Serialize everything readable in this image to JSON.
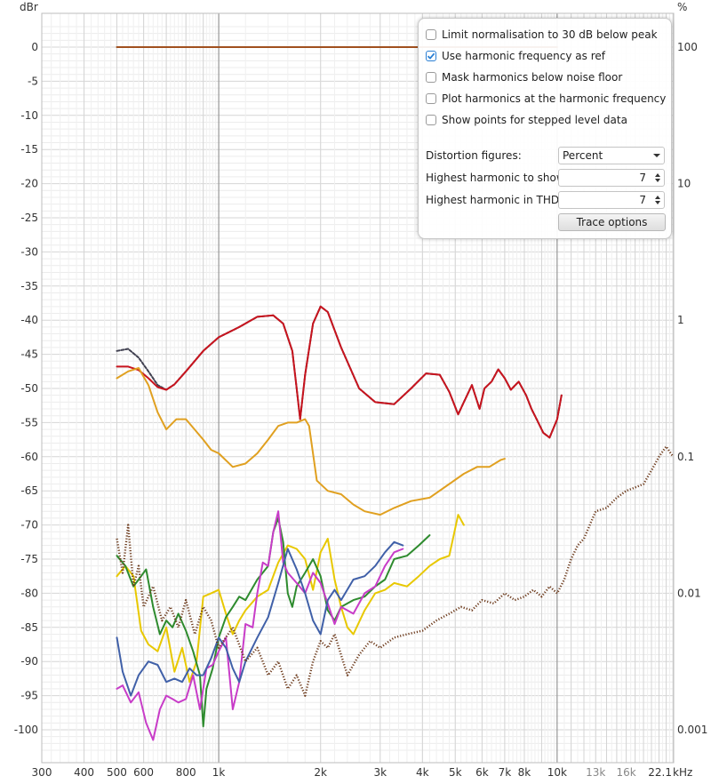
{
  "axes": {
    "left_unit": "dBr",
    "right_unit": "%",
    "x_unit": "kHz",
    "left_ticks": [
      "0",
      "-5",
      "-10",
      "-15",
      "-20",
      "-25",
      "-30",
      "-35",
      "-40",
      "-45",
      "-50",
      "-55",
      "-60",
      "-65",
      "-70",
      "-75",
      "-80",
      "-85",
      "-90",
      "-95",
      "-100"
    ],
    "right_ticks": [
      "100",
      "10",
      "1",
      "0.1",
      "0.01",
      "0.001"
    ],
    "x_ticks": [
      "300",
      "400",
      "500",
      "600",
      "800",
      "1k",
      "2k",
      "3k",
      "4k",
      "5k",
      "6k",
      "7k",
      "8k",
      "10k",
      "13k",
      "16k",
      "22.1"
    ]
  },
  "options_panel": {
    "checkboxes": [
      {
        "label": "Limit normalisation to 30 dB below peak",
        "checked": false
      },
      {
        "label": "Use harmonic frequency as ref",
        "checked": true
      },
      {
        "label": "Mask harmonics below noise floor",
        "checked": false
      },
      {
        "label": "Plot harmonics at the harmonic frequency",
        "checked": false
      },
      {
        "label": "Show points for stepped level data",
        "checked": false
      }
    ],
    "distortion_label": "Distortion figures:",
    "distortion_value": "Percent",
    "highest_show_label": "Highest harmonic to show:",
    "highest_show_value": "7",
    "highest_thd_label": "Highest harmonic in THD:",
    "highest_thd_value": "7",
    "trace_options_label": "Trace options"
  },
  "chart_data": {
    "type": "line",
    "x_scale": "log",
    "xlim": [
      300,
      22100
    ],
    "ylim": [
      -103,
      5
    ],
    "ylabel": "dBr",
    "y2label": "%",
    "xlabel": "kHz",
    "grid": true,
    "series": [
      {
        "color": "#a0501e",
        "style": "solid",
        "x": [
          500,
          10000
        ],
        "y": [
          0,
          0
        ]
      },
      {
        "color": "#404050",
        "style": "dashed",
        "x": [
          500,
          540,
          580,
          620,
          660,
          700,
          740,
          800,
          900,
          1000,
          1150,
          1300,
          1450,
          1550,
          1650,
          1700,
          1740,
          1800,
          1900,
          2000,
          2100,
          2300,
          2600,
          2900,
          3300,
          3700,
          4100,
          4500,
          4800,
          5100,
          5300,
          5600,
          5900,
          6100,
          6400,
          6700,
          7000,
          7300,
          7700,
          8100,
          8400,
          8700,
          9100,
          9500,
          10000,
          10300
        ],
        "y": [
          -44.5,
          -44.2,
          -45.5,
          -47.5,
          -49.5,
          -50.2,
          -49.4,
          -47.5,
          -44.5,
          -42.5,
          -41.0,
          -39.5,
          -39.3,
          -40.5,
          -44.5,
          -50,
          -54.5,
          -48,
          -40.5,
          -38.0,
          -38.8,
          -44.0,
          -50.0,
          -52.0,
          -52.3,
          -50.0,
          -47.8,
          -48.0,
          -50.5,
          -53.8,
          -52.0,
          -49.5,
          -53.0,
          -50.0,
          -49.0,
          -47.2,
          -48.5,
          -50.2,
          -49.0,
          -51.0,
          -53.0,
          -54.5,
          -56.5,
          -57.2,
          -54.5,
          -51.0
        ]
      },
      {
        "color": "#c8141e",
        "style": "solid",
        "x": [
          500,
          540,
          580,
          620,
          660,
          700,
          740,
          800,
          900,
          1000,
          1150,
          1300,
          1450,
          1550,
          1650,
          1700,
          1740,
          1800,
          1900,
          2000,
          2100,
          2300,
          2600,
          2900,
          3300,
          3700,
          4100,
          4500,
          4800,
          5100,
          5300,
          5600,
          5900,
          6100,
          6400,
          6700,
          7000,
          7300,
          7700,
          8100,
          8400,
          8700,
          9100,
          9500,
          10000,
          10300
        ],
        "y": [
          -46.8,
          -46.8,
          -47.3,
          -48.5,
          -49.8,
          -50.2,
          -49.4,
          -47.5,
          -44.5,
          -42.5,
          -41.0,
          -39.5,
          -39.3,
          -40.5,
          -44.5,
          -50,
          -54.5,
          -48,
          -40.5,
          -38.0,
          -38.8,
          -44.0,
          -50.0,
          -52.0,
          -52.3,
          -50.0,
          -47.8,
          -48.0,
          -50.5,
          -53.8,
          -52.0,
          -49.5,
          -53.0,
          -50.0,
          -49.0,
          -47.2,
          -48.5,
          -50.2,
          -49.0,
          -51.0,
          -53.0,
          -54.5,
          -56.5,
          -57.2,
          -54.5,
          -51.0
        ]
      },
      {
        "color": "#e0a020",
        "style": "solid",
        "x": [
          500,
          540,
          580,
          620,
          660,
          700,
          750,
          800,
          900,
          950,
          1000,
          1100,
          1200,
          1300,
          1400,
          1500,
          1600,
          1700,
          1800,
          1850,
          1950,
          2100,
          2300,
          2500,
          2700,
          3000,
          3300,
          3700,
          4200,
          4800,
          5300,
          5800,
          6300,
          6800,
          7000
        ],
        "y": [
          -48.5,
          -47.5,
          -47.0,
          -49.5,
          -53.5,
          -56.0,
          -54.5,
          -54.5,
          -57.5,
          -59.0,
          -59.5,
          -61.5,
          -61.0,
          -59.5,
          -57.5,
          -55.5,
          -55.0,
          -55.0,
          -54.5,
          -55.5,
          -63.5,
          -65.0,
          -65.5,
          -67.0,
          -68.0,
          -68.5,
          -67.5,
          -66.5,
          -66.0,
          -64.0,
          -62.5,
          -61.5,
          -61.5,
          -60.5,
          -60.3
        ]
      },
      {
        "color": "#e8c800",
        "style": "solid",
        "x": [
          500,
          530,
          560,
          590,
          620,
          660,
          700,
          740,
          780,
          820,
          860,
          900,
          950,
          1000,
          1050,
          1100,
          1150,
          1200,
          1300,
          1400,
          1500,
          1600,
          1700,
          1800,
          1900,
          2000,
          2100,
          2200,
          2300,
          2400,
          2500,
          2700,
          2900,
          3100,
          3300,
          3600,
          3900,
          4200,
          4500,
          4800,
          5100,
          5300
        ],
        "y": [
          -77.5,
          -76.0,
          -77.5,
          -85.5,
          -87.5,
          -88.5,
          -85.0,
          -91.5,
          -88.0,
          -93.0,
          -90.0,
          -80.5,
          -80.0,
          -79.5,
          -83.0,
          -86.0,
          -84.0,
          -82.5,
          -80.5,
          -79.5,
          -75.5,
          -73.0,
          -73.5,
          -75.0,
          -79.5,
          -74.0,
          -72.0,
          -78.0,
          -82.0,
          -85.0,
          -86.0,
          -82.5,
          -80.0,
          -79.5,
          -78.5,
          -79.0,
          -77.5,
          -76.0,
          -75.0,
          -74.5,
          -68.5,
          -70.0
        ]
      },
      {
        "color": "#2e8b2e",
        "style": "solid",
        "x": [
          500,
          530,
          560,
          590,
          610,
          640,
          670,
          700,
          730,
          760,
          800,
          840,
          880,
          900,
          920,
          960,
          1000,
          1050,
          1100,
          1150,
          1200,
          1300,
          1400,
          1450,
          1500,
          1550,
          1600,
          1650,
          1700,
          1800,
          1900,
          2000,
          2100,
          2200,
          2300,
          2500,
          2700,
          2900,
          3100,
          3300,
          3600,
          3900,
          4200
        ],
        "y": [
          -74.5,
          -76.0,
          -79.0,
          -77.5,
          -76.5,
          -82.0,
          -86.0,
          -84.0,
          -85.0,
          -83.0,
          -85.5,
          -88.5,
          -92.0,
          -99.5,
          -94.0,
          -91.0,
          -86.5,
          -83.5,
          -82.0,
          -80.5,
          -81.0,
          -78.0,
          -76.0,
          -71.0,
          -69.0,
          -72.5,
          -80.0,
          -82.0,
          -79.0,
          -77.0,
          -75.0,
          -77.5,
          -82.5,
          -84.0,
          -82.0,
          -81.0,
          -80.5,
          -79.0,
          -78.0,
          -75.0,
          -74.5,
          -73.0,
          -71.5
        ]
      },
      {
        "color": "#c83cc8",
        "style": "solid",
        "x": [
          500,
          520,
          550,
          580,
          610,
          640,
          670,
          700,
          730,
          760,
          800,
          840,
          880,
          920,
          960,
          1000,
          1050,
          1100,
          1150,
          1200,
          1260,
          1300,
          1350,
          1400,
          1450,
          1500,
          1550,
          1600,
          1700,
          1800,
          1900,
          2000,
          2100,
          2200,
          2300,
          2500,
          2700,
          2900,
          3100,
          3300,
          3500
        ],
        "y": [
          -94.0,
          -93.5,
          -96.0,
          -94.5,
          -99.0,
          -101.5,
          -97.0,
          -95.0,
          -95.5,
          -96.0,
          -95.5,
          -92.0,
          -97.0,
          -91.0,
          -90.5,
          -88.5,
          -86.5,
          -97.0,
          -93.0,
          -84.5,
          -85.0,
          -80.0,
          -75.5,
          -76.0,
          -71.0,
          -68.0,
          -75.5,
          -77.0,
          -78.5,
          -80.0,
          -77.0,
          -78.5,
          -81.5,
          -84.5,
          -82.0,
          -83.0,
          -80.0,
          -79.0,
          -76.0,
          -74.0,
          -73.5
        ]
      },
      {
        "color": "#4060a8",
        "style": "solid",
        "x": [
          500,
          520,
          550,
          580,
          620,
          660,
          700,
          740,
          780,
          820,
          860,
          900,
          950,
          1000,
          1050,
          1100,
          1150,
          1200,
          1300,
          1400,
          1500,
          1600,
          1700,
          1800,
          1900,
          2000,
          2100,
          2200,
          2300,
          2500,
          2700,
          2900,
          3100,
          3300,
          3500
        ],
        "y": [
          -86.5,
          -91.5,
          -95.0,
          -92.0,
          -90.0,
          -90.5,
          -93.0,
          -92.5,
          -93.0,
          -91.0,
          -92.0,
          -92.0,
          -89.5,
          -86.5,
          -88.0,
          -91.0,
          -93.0,
          -90.0,
          -86.5,
          -83.5,
          -78.5,
          -73.5,
          -76.5,
          -80.0,
          -84.0,
          -86.0,
          -81.0,
          -79.5,
          -81.0,
          -78.0,
          -77.5,
          -76.0,
          -74.0,
          -72.5,
          -73.0
        ]
      },
      {
        "color": "#6e3c1e",
        "style": "dotted",
        "x": [
          500,
          520,
          540,
          560,
          580,
          600,
          640,
          680,
          720,
          760,
          800,
          850,
          900,
          950,
          1000,
          1100,
          1200,
          1300,
          1400,
          1500,
          1600,
          1700,
          1800,
          1900,
          2000,
          2100,
          2200,
          2400,
          2600,
          2800,
          3000,
          3300,
          3600,
          4000,
          4400,
          4800,
          5200,
          5600,
          6000,
          6500,
          7000,
          7500,
          8000,
          8500,
          9000,
          9500,
          10000,
          10500,
          11000,
          11500,
          12000,
          13000,
          14000,
          15000,
          16000,
          17000,
          18000,
          19000,
          20000,
          21000,
          22000
        ],
        "y": [
          -72.0,
          -77.0,
          -70.0,
          -79.0,
          -76.0,
          -82.0,
          -79.0,
          -84.0,
          -82.0,
          -85.0,
          -81.0,
          -86.0,
          -82.0,
          -84.0,
          -88.0,
          -85.0,
          -90.0,
          -88.0,
          -92.0,
          -90.0,
          -94.0,
          -92.0,
          -95.0,
          -90.0,
          -87.0,
          -88.0,
          -86.0,
          -92.0,
          -89.0,
          -87.0,
          -88.0,
          -86.5,
          -86.0,
          -85.5,
          -84.0,
          -83.0,
          -82.0,
          -82.5,
          -81.0,
          -81.5,
          -80.0,
          -81.0,
          -80.5,
          -79.5,
          -80.5,
          -79.0,
          -80.0,
          -78.0,
          -75.0,
          -73.0,
          -72.0,
          -68.0,
          -67.5,
          -66.0,
          -65.0,
          -64.5,
          -64.0,
          -62.0,
          -60.0,
          -58.5,
          -60.0
        ]
      }
    ]
  }
}
